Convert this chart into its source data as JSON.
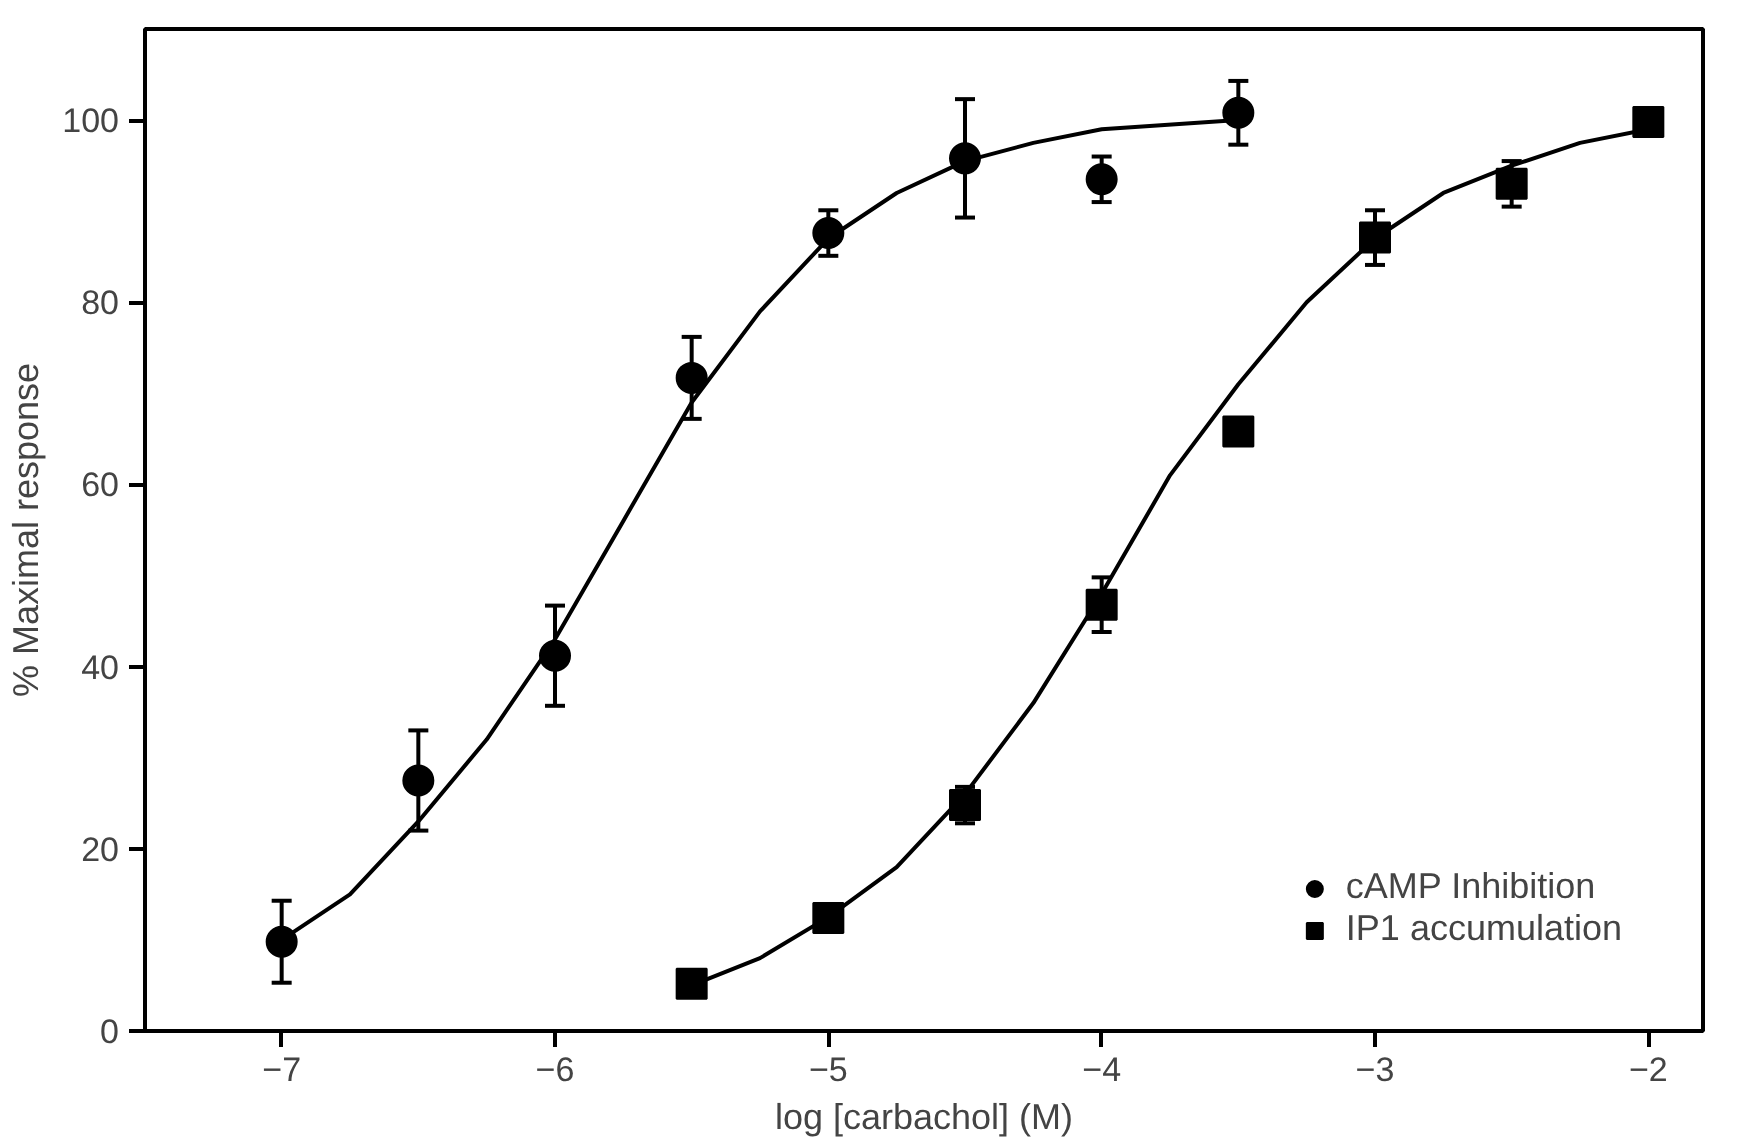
{
  "chart_data": {
    "type": "scatter",
    "xlabel": "log [carbachol] (M)",
    "ylabel": "% Maximal response",
    "xlim": [
      -7.5,
      -1.8
    ],
    "ylim": [
      0,
      110
    ],
    "xticks": [
      {
        "value": -7,
        "label": "−7"
      },
      {
        "value": -6,
        "label": "−6"
      },
      {
        "value": -5,
        "label": "−5"
      },
      {
        "value": -4,
        "label": "−4"
      },
      {
        "value": -3,
        "label": "−3"
      },
      {
        "value": -2,
        "label": "−2"
      }
    ],
    "yticks": [
      0,
      20,
      40,
      60,
      80,
      100
    ],
    "grid": false,
    "legend": "bottom right",
    "series": [
      {
        "name": "cAMP Inhibition",
        "marker": "circle",
        "color": "#000000",
        "x": [
          -7,
          -6.5,
          -6,
          -5.5,
          -5,
          -4.5,
          -4,
          -3.5
        ],
        "values": [
          9.8,
          27.5,
          41.2,
          71.7,
          87.6,
          95.8,
          93.5,
          100.8
        ],
        "errors": [
          4.5,
          5.5,
          5.5,
          4.5,
          2.5,
          6.5,
          2.5,
          3.5
        ]
      },
      {
        "name": "IP1 accumulation",
        "marker": "square",
        "color": "#000000",
        "x": [
          -5.5,
          -5,
          -4.5,
          -4,
          -3.5,
          -3,
          -2.5,
          -2
        ],
        "values": [
          5.2,
          12.4,
          24.8,
          46.8,
          65.8,
          87.1,
          93,
          99.8
        ],
        "errors": [
          null,
          null,
          2,
          3,
          null,
          3,
          2.5,
          null
        ]
      },
      {
        "type": "line",
        "color": "#000000",
        "x": [
          -7,
          -6.75,
          -6.5,
          -6.25,
          -6,
          -5.75,
          -5.5,
          -5.25,
          -5,
          -4.75,
          -4.5,
          -4.25,
          -4,
          -3.5
        ],
        "values": [
          10,
          15,
          23,
          32,
          43,
          56,
          69,
          79,
          87,
          92,
          95.5,
          97.5,
          99,
          100
        ]
      },
      {
        "type": "line",
        "color": "#000000",
        "x": [
          -5.5,
          -5.25,
          -5,
          -4.75,
          -4.5,
          -4.25,
          -4,
          -3.75,
          -3.5,
          -3.25,
          -3,
          -2.75,
          -2.5,
          -2.25,
          -2
        ],
        "values": [
          5,
          8,
          12.5,
          18,
          26,
          36,
          48,
          61,
          71,
          80,
          87,
          92,
          95,
          97.5,
          99
        ]
      }
    ]
  }
}
